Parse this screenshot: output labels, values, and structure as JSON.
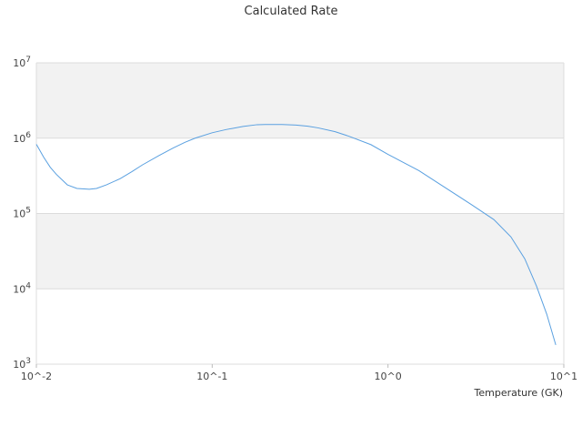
{
  "chart_data": {
    "type": "line",
    "title": "Calculated Rate",
    "xlabel": "Temperature (GK)",
    "ylabel": "",
    "xscale": "log",
    "yscale": "log",
    "xlim": [
      0.01,
      10
    ],
    "ylim": [
      1000,
      10000000
    ],
    "grid": true,
    "legend": "none",
    "x_tick_labels": [
      "10^-2",
      "10^-1",
      "10^0",
      "10^1"
    ],
    "y_tick_labels": [
      "10^3",
      "10^4",
      "10^5",
      "10^6",
      "10^7"
    ],
    "band_color": "#f2f2f2",
    "line_color": "#5aa0e0",
    "series": [
      {
        "x": [
          0.01,
          0.011,
          0.012,
          0.013,
          0.015,
          0.017,
          0.02,
          0.022,
          0.025,
          0.03,
          0.035,
          0.04,
          0.05,
          0.06,
          0.07,
          0.08,
          0.1,
          0.12,
          0.15,
          0.18,
          0.2,
          0.25,
          0.3,
          0.35,
          0.4,
          0.5,
          0.6,
          0.8,
          1.0,
          1.5,
          2.0,
          3.0,
          4.0,
          5.0,
          6.0,
          7.0,
          8.0,
          9.0
        ],
        "y": [
          830000,
          560000,
          410000,
          330000,
          240000,
          215000,
          210000,
          215000,
          240000,
          290000,
          360000,
          440000,
          590000,
          740000,
          880000,
          1000000,
          1180000,
          1300000,
          1430000,
          1510000,
          1520000,
          1520000,
          1490000,
          1440000,
          1370000,
          1220000,
          1060000,
          820000,
          610000,
          370000,
          240000,
          130000,
          83000,
          49000,
          25000,
          10800,
          4600,
          1800
        ]
      }
    ]
  }
}
